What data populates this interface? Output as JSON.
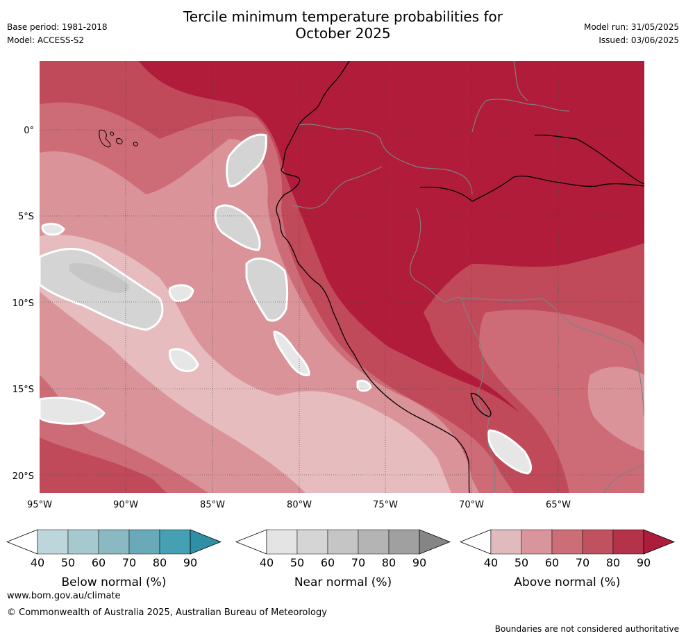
{
  "header": {
    "title_line1": "Tercile minimum temperature probabilities for",
    "title_line2": "October 2025",
    "base_period": "Base period: 1981-2018",
    "model": "Model: ACCESS-S2",
    "model_run": "Model run: 31/05/2025",
    "issued": "Issued: 03/06/2025"
  },
  "map": {
    "lat_labels": [
      "0°",
      "5°S",
      "10°S",
      "15°S",
      "20°S"
    ],
    "lon_labels": [
      "95°W",
      "90°W",
      "85°W",
      "80°W",
      "75°W",
      "70°W",
      "65°W"
    ],
    "colors": {
      "above_dark": "#b01c39",
      "above_80": "#c04a5a",
      "above_70": "#cd6c77",
      "above_60": "#d99399",
      "above_50": "#e6bcbf",
      "near": "#d4d4d4",
      "near_light": "#e6e6e6",
      "border": "#808080",
      "coast": "#000000"
    }
  },
  "legends": [
    {
      "title": "Below normal (%)",
      "ticks": [
        "40",
        "50",
        "60",
        "70",
        "80",
        "90"
      ],
      "colors": [
        "#ffffff",
        "#bdd6dc",
        "#a6c9d0",
        "#8ab9c4",
        "#6aa9b8",
        "#44a0b2",
        "#2e8fa5"
      ]
    },
    {
      "title": "Near normal (%)",
      "ticks": [
        "40",
        "50",
        "60",
        "70",
        "80",
        "90"
      ],
      "colors": [
        "#ffffff",
        "#e4e4e4",
        "#d5d5d5",
        "#c5c5c5",
        "#b4b4b4",
        "#a0a0a0",
        "#858585"
      ]
    },
    {
      "title": "Above normal (%)",
      "ticks": [
        "40",
        "50",
        "60",
        "70",
        "80",
        "90"
      ],
      "colors": [
        "#ffffff",
        "#e1babe",
        "#d8959c",
        "#cc6e78",
        "#c0525f",
        "#b5334a",
        "#ad1c3a"
      ]
    }
  ],
  "footer": {
    "website": "www.bom.gov.au/climate",
    "copyright": "© Commonwealth of Australia 2025, Australian Bureau of Meteorology",
    "disclaimer": "Boundaries are not considered authoritative"
  }
}
